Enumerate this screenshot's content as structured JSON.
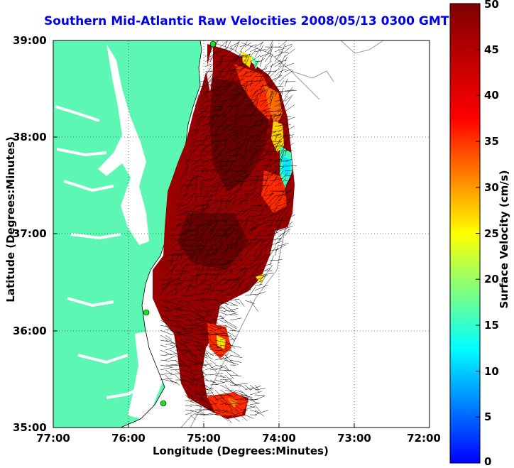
{
  "title": "Southern Mid-Atlantic Raw Velocities 2008/05/13 0300 GMT",
  "x_axis": {
    "label": "Longitude (Degrees:Minutes)",
    "ticks": [
      "77:00",
      "76:00",
      "75:00",
      "74:00",
      "73:00",
      "72:00"
    ]
  },
  "y_axis": {
    "label": "Latitude (Degrees:Minutes)",
    "ticks": [
      "39:00",
      "38:00",
      "37:00",
      "36:00",
      "35:00"
    ]
  },
  "colorbar": {
    "label": "Surface Velocity (cm/s)",
    "ticks": [
      "50",
      "45",
      "40",
      "35",
      "30",
      "25",
      "20",
      "15",
      "10",
      "5",
      "0"
    ],
    "range": [
      0,
      50
    ],
    "colormap": "jet"
  },
  "colors": {
    "title": "#0000ee",
    "land": "#5cf7b2",
    "station": "#22dd22",
    "grid": "#000000"
  },
  "map": {
    "lon_range": [
      -77,
      -72
    ],
    "lat_range": [
      35,
      39
    ],
    "grid": true,
    "features": [
      "land-mask",
      "bathymetry-contours",
      "velocity-field",
      "velocity-vectors",
      "hf-radar-stations"
    ]
  }
}
